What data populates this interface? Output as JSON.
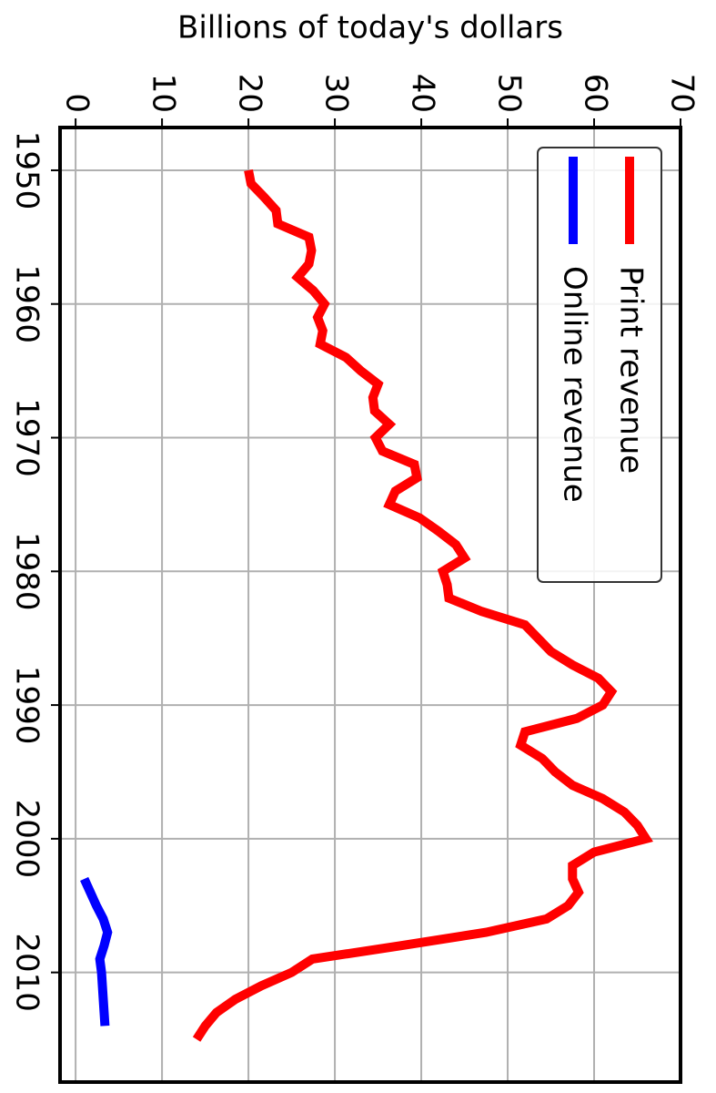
{
  "chart_data": {
    "type": "line",
    "title": "Billions of today's dollars",
    "x": [
      1950,
      1951,
      1952,
      1953,
      1954,
      1955,
      1956,
      1957,
      1958,
      1959,
      1960,
      1961,
      1962,
      1963,
      1964,
      1965,
      1966,
      1967,
      1968,
      1969,
      1970,
      1971,
      1972,
      1973,
      1974,
      1975,
      1976,
      1977,
      1978,
      1979,
      1980,
      1981,
      1982,
      1983,
      1984,
      1985,
      1986,
      1987,
      1988,
      1989,
      1990,
      1991,
      1992,
      1993,
      1994,
      1995,
      1996,
      1997,
      1998,
      1999,
      2000,
      2001,
      2002,
      2003,
      2004,
      2005,
      2006,
      2007,
      2008,
      2009,
      2010,
      2011,
      2012,
      2013,
      2014,
      2015
    ],
    "series": [
      {
        "name": "Print revenue",
        "color": "#ff0000",
        "x": [
          1950,
          1951,
          1952,
          1953,
          1954,
          1955,
          1956,
          1957,
          1958,
          1959,
          1960,
          1961,
          1962,
          1963,
          1964,
          1965,
          1966,
          1967,
          1968,
          1969,
          1970,
          1971,
          1972,
          1973,
          1974,
          1975,
          1976,
          1977,
          1978,
          1979,
          1980,
          1981,
          1982,
          1983,
          1984,
          1985,
          1986,
          1987,
          1988,
          1989,
          1990,
          1991,
          1992,
          1993,
          1994,
          1995,
          1996,
          1997,
          1998,
          1999,
          2000,
          2001,
          2002,
          2003,
          2004,
          2005,
          2006,
          2007,
          2008,
          2009,
          2010,
          2011,
          2012,
          2013,
          2014,
          2015
        ],
        "values": [
          20,
          20.3,
          21.8,
          23.2,
          23.4,
          27.0,
          27.3,
          27.0,
          25.7,
          27.5,
          28.8,
          28.0,
          28.6,
          28.3,
          31.3,
          33,
          35,
          34.4,
          34.6,
          36.3,
          34.7,
          35.5,
          39.2,
          39.5,
          37,
          36.3,
          39.8,
          42,
          44,
          45,
          42.5,
          43,
          43.2,
          47,
          52,
          53.5,
          55,
          57.5,
          60.5,
          62,
          61,
          58,
          52,
          51.5,
          54,
          55.5,
          57.5,
          61,
          63.5,
          65,
          66,
          60,
          57.5,
          57.5,
          58.2,
          57,
          54.5,
          47.5,
          37.6,
          27.4,
          25,
          21.5,
          18.5,
          16.3,
          15,
          14
        ]
      },
      {
        "name": "Online revenue",
        "color": "#0000ff",
        "x": [
          2003,
          2004,
          2005,
          2006,
          2007,
          2008,
          2009,
          2010,
          2011,
          2012,
          2013,
          2014
        ],
        "values": [
          1.0,
          1.7,
          2.4,
          3.2,
          3.7,
          3.3,
          2.8,
          3.0,
          3.1,
          3.2,
          3.3,
          3.4
        ]
      }
    ],
    "xlim": [
      1946.8,
      2018.2
    ],
    "xticks": [
      1950,
      1960,
      1970,
      1980,
      1990,
      2000,
      2010
    ],
    "ylim": [
      -1.8,
      70
    ],
    "yticks": [
      0,
      10,
      20,
      30,
      40,
      50,
      60,
      70
    ],
    "grid": true,
    "legend": "upper right"
  }
}
